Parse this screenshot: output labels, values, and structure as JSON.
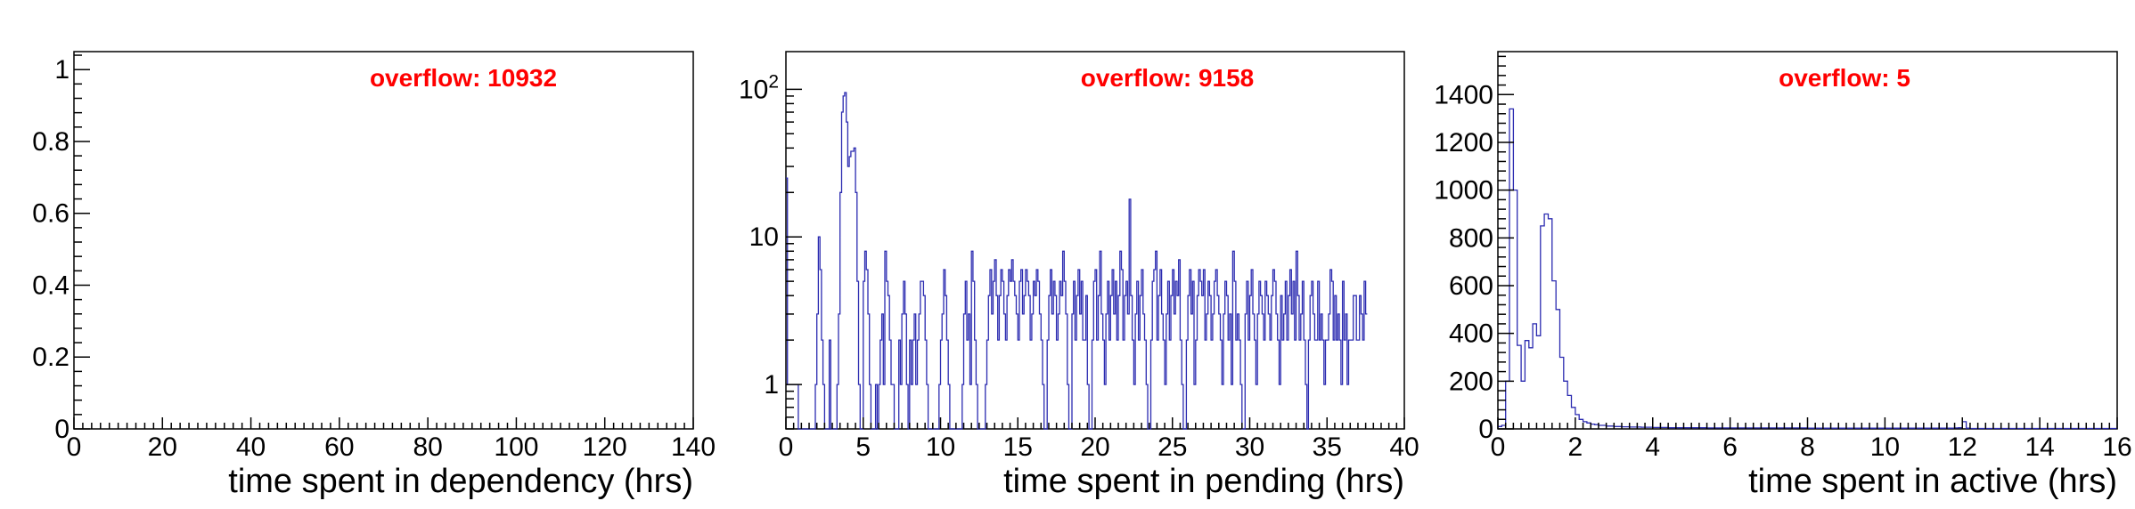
{
  "chart_data": [
    {
      "type": "bar",
      "title": "",
      "xlabel": "time spent in dependency (hrs)",
      "ylabel": "",
      "xlim": [
        0,
        140
      ],
      "ylim": [
        0,
        1.05
      ],
      "log_y": false,
      "x_ticks": [
        "0",
        "20",
        "40",
        "60",
        "80",
        "100",
        "120",
        "140"
      ],
      "y_ticks": [
        "0",
        "0.2",
        "0.4",
        "0.6",
        "0.8",
        "1"
      ],
      "annotation": "overflow: 10932",
      "bin_width": 1,
      "values": []
    },
    {
      "type": "bar",
      "title": "",
      "xlabel": "time spent in pending (hrs)",
      "ylabel": "",
      "xlim": [
        0,
        40
      ],
      "ylim": [
        0.5,
        180
      ],
      "log_y": true,
      "x_ticks": [
        "0",
        "5",
        "10",
        "15",
        "20",
        "25",
        "30",
        "35",
        "40"
      ],
      "y_ticks": [
        "1",
        "10",
        "10^2"
      ],
      "annotation": "overflow: 9158",
      "bin_width": 0.1,
      "values": [
        25,
        1,
        1,
        1,
        1,
        1,
        1,
        1,
        0,
        0,
        0,
        0,
        0,
        0,
        0,
        0,
        0,
        0,
        0,
        1,
        3,
        10,
        6,
        2,
        1,
        0,
        0,
        0,
        2,
        0,
        0,
        0,
        0,
        1,
        3,
        20,
        70,
        90,
        95,
        60,
        30,
        35,
        38,
        38,
        40,
        20,
        5,
        1,
        0,
        0,
        5,
        8,
        6,
        3,
        1,
        0,
        0,
        0,
        1,
        0,
        1,
        2,
        3,
        1,
        8,
        5,
        4,
        2,
        1,
        1,
        0,
        0,
        0,
        2,
        1,
        3,
        5,
        3,
        1,
        0,
        2,
        1,
        2,
        3,
        1,
        2,
        3,
        5,
        5,
        4,
        2,
        1,
        0,
        0,
        0,
        0,
        0,
        0,
        0,
        1,
        2,
        3,
        6,
        4,
        2,
        1,
        0,
        0,
        0,
        0,
        0,
        0,
        0,
        0,
        1,
        3,
        5,
        2,
        3,
        1,
        8,
        5,
        2,
        1,
        0,
        0,
        0,
        0,
        0,
        1,
        2,
        4,
        6,
        3,
        5,
        7,
        4,
        2,
        4,
        6,
        5,
        3,
        2,
        4,
        6,
        5,
        7,
        5,
        4,
        3,
        2,
        5,
        6,
        3,
        4,
        6,
        5,
        4,
        2,
        3,
        5,
        4,
        6,
        5,
        3,
        2,
        1,
        0,
        0,
        2,
        4,
        6,
        3,
        5,
        4,
        2,
        3,
        5,
        4,
        8,
        5,
        3,
        1,
        0,
        0,
        3,
        5,
        2,
        4,
        6,
        3,
        5,
        2,
        2,
        4,
        1,
        0,
        0,
        2,
        5,
        6,
        2,
        4,
        8,
        3,
        2,
        1,
        3,
        5,
        2,
        4,
        6,
        3,
        5,
        2,
        4,
        8,
        6,
        2,
        4,
        5,
        3,
        18,
        4,
        2,
        1,
        3,
        5,
        2,
        4,
        6,
        3,
        2,
        1,
        0,
        0,
        2,
        5,
        6,
        8,
        2,
        4,
        6,
        3,
        2,
        1,
        3,
        5,
        2,
        4,
        6,
        3,
        5,
        4,
        7,
        2,
        1,
        0,
        0,
        2,
        4,
        6,
        3,
        5,
        1,
        2,
        4,
        6,
        5,
        4,
        6,
        2,
        3,
        5,
        4,
        2,
        3,
        5,
        6,
        4,
        3,
        2,
        1,
        3,
        5,
        4,
        2,
        3,
        1,
        8,
        5,
        2,
        3,
        2,
        1,
        0,
        0,
        3,
        5,
        2,
        4,
        6,
        3,
        2,
        1,
        3,
        5,
        4,
        3,
        2,
        5,
        4,
        3,
        2,
        4,
        6,
        5,
        3,
        2,
        1,
        4,
        2,
        3,
        5,
        2,
        4,
        6,
        3,
        5,
        2,
        8,
        4,
        2,
        3,
        5,
        2,
        1,
        0,
        2,
        4,
        5,
        3,
        2,
        2,
        5,
        2,
        3,
        2,
        1,
        2,
        2,
        3,
        6,
        5,
        2,
        4,
        2,
        3,
        2,
        1,
        5,
        2,
        3,
        1,
        2,
        2,
        2,
        4,
        4,
        2,
        2,
        4,
        3,
        2,
        5,
        3
      ]
    },
    {
      "type": "bar",
      "title": "",
      "xlabel": "time spent in active (hrs)",
      "ylabel": "",
      "xlim": [
        0,
        16
      ],
      "ylim": [
        0,
        1580
      ],
      "log_y": false,
      "x_ticks": [
        "0",
        "2",
        "4",
        "6",
        "8",
        "10",
        "12",
        "14",
        "16"
      ],
      "y_ticks": [
        "0",
        "200",
        "400",
        "600",
        "800",
        "1000",
        "1200",
        "1400"
      ],
      "annotation": "overflow: 5",
      "bin_width": 0.1,
      "values": [
        10,
        15,
        200,
        1340,
        1000,
        350,
        200,
        370,
        340,
        440,
        390,
        850,
        900,
        880,
        620,
        500,
        300,
        200,
        140,
        90,
        60,
        40,
        30,
        25,
        20,
        18,
        15,
        15,
        12,
        12,
        10,
        10,
        9,
        9,
        8,
        8,
        8,
        7,
        7,
        7,
        6,
        6,
        6,
        6,
        5,
        5,
        5,
        5,
        5,
        5,
        5,
        5,
        5,
        5,
        4,
        4,
        4,
        4,
        4,
        4,
        4,
        4,
        4,
        4,
        4,
        4,
        4,
        4,
        4,
        4,
        4,
        4,
        4,
        4,
        4,
        4,
        4,
        4,
        4,
        4,
        3,
        3,
        3,
        3,
        3,
        3,
        3,
        3,
        3,
        3,
        3,
        3,
        3,
        3,
        3,
        3,
        3,
        3,
        3,
        3,
        3,
        3,
        3,
        3,
        3,
        3,
        3,
        3,
        3,
        3,
        3,
        3,
        3,
        3,
        3,
        3,
        3,
        3,
        4,
        5,
        30,
        3,
        2,
        2,
        2,
        2,
        2,
        2,
        2,
        2,
        2,
        2,
        2,
        2,
        2,
        2,
        2,
        2,
        2,
        2,
        2,
        2,
        2,
        2,
        2,
        2,
        2,
        2,
        2,
        2,
        2,
        2,
        2,
        2,
        2,
        2,
        2,
        2,
        2,
        2
      ]
    }
  ]
}
